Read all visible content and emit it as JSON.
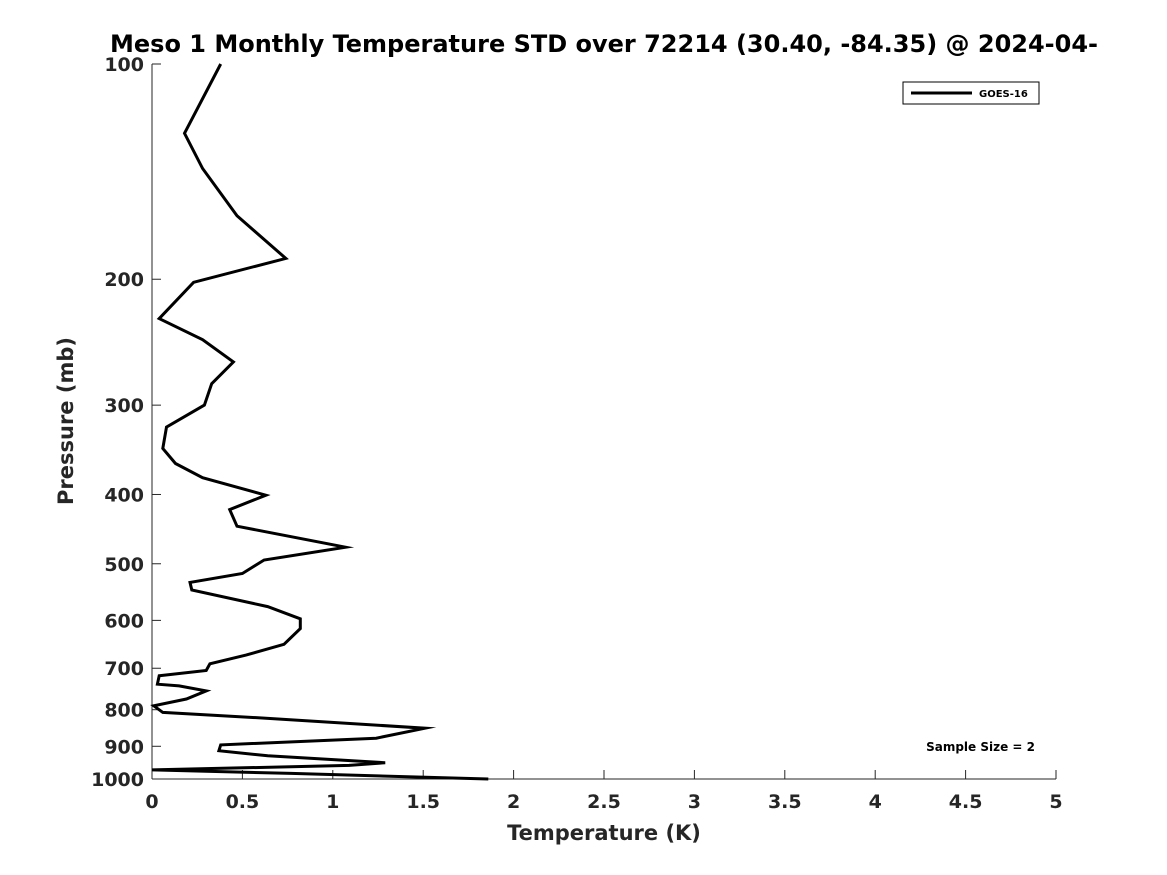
{
  "chart_data": {
    "type": "line",
    "title": "Meso 1 Monthly Temperature STD over 72214 (30.40, -84.35) @ 2024-04-",
    "xlabel": "Temperature (K)",
    "ylabel": "Pressure (mb)",
    "xlim": [
      0,
      5
    ],
    "ylim": [
      100,
      1000
    ],
    "yscale": "log",
    "yreversed": true,
    "xticks": [
      0,
      0.5,
      1,
      1.5,
      2,
      2.5,
      3,
      3.5,
      4,
      4.5,
      5
    ],
    "xtick_labels": [
      "0",
      "0.5",
      "1",
      "1.5",
      "2",
      "2.5",
      "3",
      "3.5",
      "4",
      "4.5",
      "5"
    ],
    "yticks": [
      100,
      200,
      300,
      400,
      500,
      600,
      700,
      800,
      900,
      1000
    ],
    "ytick_labels": [
      "100",
      "200",
      "300",
      "400",
      "500",
      "600",
      "700",
      "800",
      "900",
      "1000"
    ],
    "grid": false,
    "legend_position": "top-right",
    "series": [
      {
        "name": "GOES-16",
        "color": "#000000",
        "points": [
          [
            0.38,
            100
          ],
          [
            0.18,
            125
          ],
          [
            0.28,
            140
          ],
          [
            0.47,
            163
          ],
          [
            0.74,
            187
          ],
          [
            0.23,
            202
          ],
          [
            0.04,
            227
          ],
          [
            0.28,
            243
          ],
          [
            0.45,
            261
          ],
          [
            0.33,
            280
          ],
          [
            0.29,
            300
          ],
          [
            0.08,
            322
          ],
          [
            0.06,
            345
          ],
          [
            0.13,
            362
          ],
          [
            0.28,
            379
          ],
          [
            0.63,
            401
          ],
          [
            0.43,
            420
          ],
          [
            0.47,
            443
          ],
          [
            1.07,
            474
          ],
          [
            0.62,
            494
          ],
          [
            0.5,
            516
          ],
          [
            0.21,
            531
          ],
          [
            0.22,
            544
          ],
          [
            0.64,
            574
          ],
          [
            0.82,
            597
          ],
          [
            0.82,
            616
          ],
          [
            0.73,
            648
          ],
          [
            0.52,
            671
          ],
          [
            0.32,
            690
          ],
          [
            0.3,
            705
          ],
          [
            0.04,
            717
          ],
          [
            0.03,
            737
          ],
          [
            0.15,
            741
          ],
          [
            0.3,
            753
          ],
          [
            0.19,
            773
          ],
          [
            0.01,
            790
          ],
          [
            0.06,
            807
          ],
          [
            0.62,
            822
          ],
          [
            1.51,
            849
          ],
          [
            1.24,
            877
          ],
          [
            0.38,
            896
          ],
          [
            0.37,
            913
          ],
          [
            0.64,
            928
          ],
          [
            1.29,
            949
          ],
          [
            1.09,
            957
          ],
          [
            0.0,
            971
          ],
          [
            0.77,
            982
          ],
          [
            1.86,
            1000
          ]
        ]
      }
    ],
    "annotations": [
      "Sample Size = 2"
    ]
  }
}
